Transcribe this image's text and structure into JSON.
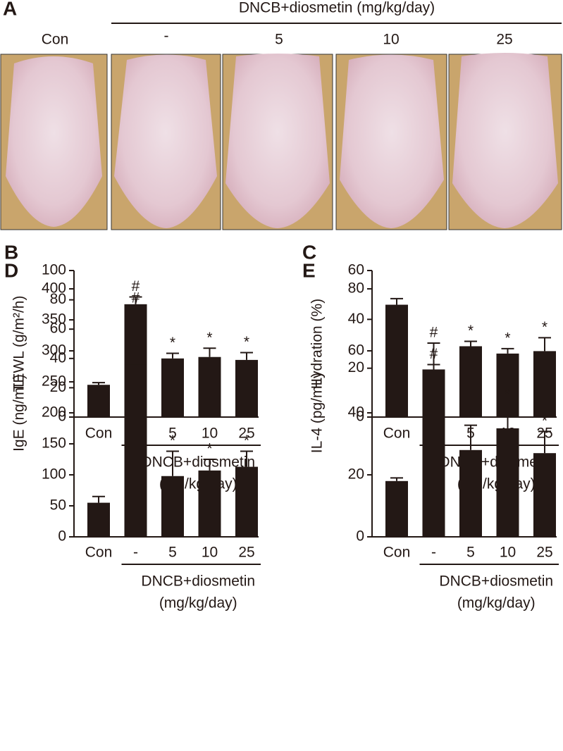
{
  "panel_a": {
    "panel": "A",
    "header": "DNCB+diosmetin (mg/kg/day)",
    "labels": [
      "Con",
      "-",
      "5",
      "10",
      "25"
    ]
  },
  "chart_data": [
    {
      "type": "bar",
      "panel": "B",
      "ylabel": "TEWL (g/m²/h)",
      "categories": [
        "Con",
        "-",
        "5",
        "10",
        "25"
      ],
      "values": [
        22,
        77,
        40,
        41,
        39
      ],
      "errors": [
        1.5,
        5,
        3.5,
        6,
        5
      ],
      "markers": [
        null,
        "#",
        "*",
        "*",
        "*"
      ],
      "group_label": [
        "DNCB+diosmetin",
        "(mg/kg/day)"
      ],
      "ylim": [
        0,
        100
      ],
      "yticks": [
        0,
        20,
        40,
        60,
        80,
        100
      ],
      "color": "#231815"
    },
    {
      "type": "bar",
      "panel": "C",
      "ylabel": "Hydration (%)",
      "categories": [
        "Con",
        "-",
        "5",
        "10",
        "25"
      ],
      "values": [
        46,
        19,
        29,
        26,
        27
      ],
      "errors": [
        2.5,
        2.5,
        2,
        2,
        5.5
      ],
      "markers": [
        null,
        "#",
        "*",
        "*",
        "*"
      ],
      "group_label": [
        "DNCB+diosmetin",
        "(mg/kg/day)"
      ],
      "ylim": [
        0,
        60
      ],
      "yticks": [
        0,
        20,
        40,
        60
      ],
      "color": "#231815"
    },
    {
      "type": "bar",
      "panel": "D",
      "ylabel": "IgE (ng/mL)",
      "categories": [
        "Con",
        "-",
        "5",
        "10",
        "25"
      ],
      "values": [
        55,
        278,
        98,
        107,
        113
      ],
      "errors": [
        10,
        90,
        40,
        18,
        25
      ],
      "markers": [
        null,
        "#",
        "*",
        "*",
        "*"
      ],
      "group_label": [
        "DNCB+diosmetin",
        "(mg/kg/day)"
      ],
      "ylim": [
        0,
        400
      ],
      "yticks": [
        0,
        50,
        100,
        150,
        200,
        250,
        300,
        350,
        400
      ],
      "color": "#231815"
    },
    {
      "type": "bar",
      "panel": "E",
      "ylabel": "IL-4 (pg/mL)",
      "categories": [
        "Con",
        "-",
        "5",
        "10",
        "25"
      ],
      "values": [
        18,
        54,
        28,
        35,
        27
      ],
      "errors": [
        1,
        8.5,
        8,
        7.5,
        7
      ],
      "markers": [
        null,
        "#",
        "*",
        "*",
        "*"
      ],
      "group_label": [
        "DNCB+diosmetin",
        "(mg/kg/day)"
      ],
      "ylim": [
        0,
        80
      ],
      "yticks": [
        0,
        20,
        40,
        60,
        80
      ],
      "color": "#231815"
    }
  ]
}
